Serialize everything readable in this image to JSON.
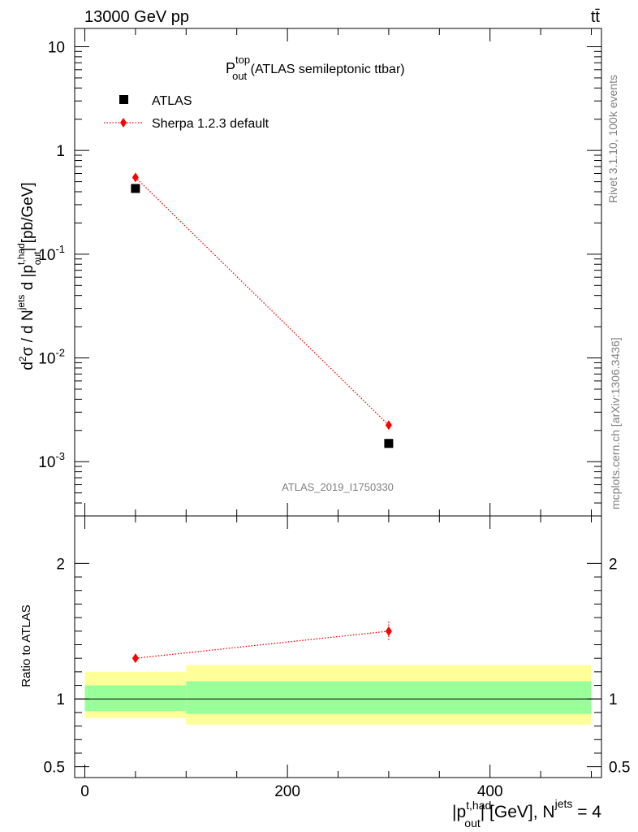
{
  "header": {
    "energy_label": "13000 GeV pp",
    "process_label": "tt̄"
  },
  "side_labels": {
    "rivet": "Rivet 3.1.10,  100k events",
    "mcplots": "mcplots.cern.ch [arXiv:1306.3436]"
  },
  "colors": {
    "data": "#000000",
    "mc": "#ff0000",
    "band_inner": "#99ff99",
    "band_outer": "#ffff99"
  },
  "chart_data": [
    {
      "type": "scatter",
      "panel": "main",
      "title": "P_out^top (ATLAS semileptonic ttbar)",
      "title_main": "P",
      "title_sup": "top",
      "title_sub": "out",
      "title_rest": " (ATLAS semileptonic ttbar)",
      "ylabel": "d²σ / d N^jets d |p_out^t,had| [pb/GeV]",
      "yscale": "log",
      "ylim": [
        0.0003,
        15
      ],
      "xlim": [
        -10,
        510
      ],
      "ytick_labels": [
        "10",
        "1",
        "10^-1",
        "10^-2",
        "10^-3"
      ],
      "ref_label": "ATLAS_2019_I1750330",
      "legend_position": "top-left",
      "series": [
        {
          "name": "ATLAS",
          "marker": "square",
          "x": [
            50,
            300
          ],
          "y": [
            0.43,
            0.0015
          ]
        },
        {
          "name": "Sherpa 1.2.3 default",
          "marker": "diamond",
          "line": "dotted",
          "x": [
            50,
            300
          ],
          "y": [
            0.55,
            0.00225
          ]
        }
      ]
    },
    {
      "type": "line",
      "panel": "ratio",
      "ylabel": "Ratio to ATLAS",
      "xlabel": "|p_out^t,had| [GeV], N^jets = 4",
      "xlim": [
        -10,
        510
      ],
      "ylim": [
        0.42,
        2.35
      ],
      "x_ticks": [
        0,
        200,
        400
      ],
      "y_ticks": [
        0.5,
        1,
        2
      ],
      "uncertainty_bands": [
        {
          "xmin": 0,
          "xmax": 100,
          "inner": [
            0.91,
            1.1
          ],
          "outer": [
            0.86,
            1.2
          ]
        },
        {
          "xmin": 100,
          "xmax": 500,
          "inner": [
            0.89,
            1.13
          ],
          "outer": [
            0.81,
            1.25
          ]
        }
      ],
      "series": [
        {
          "name": "Sherpa 1.2.3 default",
          "x": [
            50,
            300
          ],
          "y": [
            1.3,
            1.5
          ],
          "yerr": [
            0.02,
            0.07
          ]
        }
      ]
    }
  ]
}
